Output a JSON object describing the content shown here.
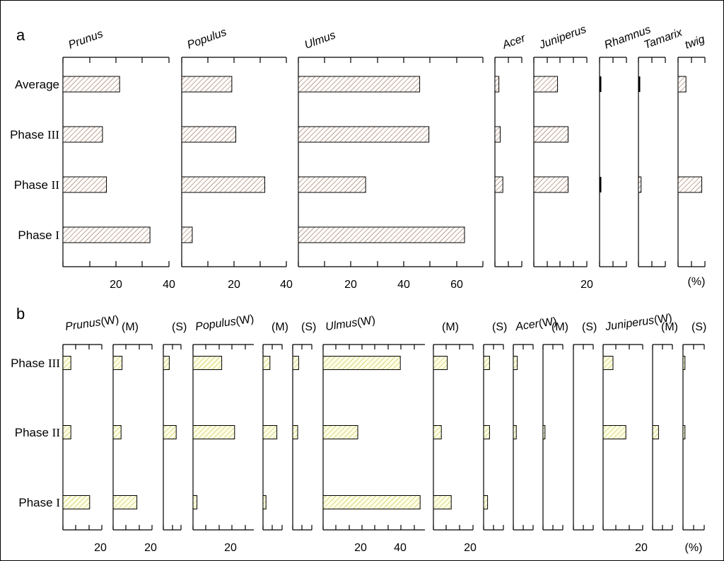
{
  "panels": {
    "a": {
      "label": "a",
      "unit": "(%)",
      "rows": [
        {
          "text": "Average",
          "roman": ""
        },
        {
          "text": "Phase ",
          "roman": "III"
        },
        {
          "text": "Phase ",
          "roman": "II"
        },
        {
          "text": "Phase ",
          "roman": "I"
        }
      ]
    },
    "b": {
      "label": "b",
      "unit": "(%)",
      "rows": [
        {
          "text": "Phase ",
          "roman": "III"
        },
        {
          "text": "Phase ",
          "roman": "II"
        },
        {
          "text": "Phase ",
          "roman": "I"
        }
      ]
    }
  },
  "colors": {
    "a_hatch": "#8b5a3c",
    "b_hatch": "#b5b53a",
    "b_fill": "#ffffe6"
  },
  "chart_data": [
    {
      "type": "bar",
      "orientation": "horizontal",
      "title": "a",
      "xlabel": "(%)",
      "categories": [
        "Average",
        "Phase III",
        "Phase II",
        "Phase I"
      ],
      "series": [
        {
          "name": "Prunus",
          "values": [
            21.5,
            15,
            16.5,
            33
          ],
          "xlim": [
            0,
            40
          ],
          "ticklabels": [
            "20",
            "40"
          ]
        },
        {
          "name": "Populus",
          "values": [
            19,
            20.5,
            31.5,
            4
          ],
          "xlim": [
            0,
            40
          ],
          "ticklabels": [
            "20",
            "40"
          ]
        },
        {
          "name": "Ulmus",
          "values": [
            46,
            49.5,
            25.5,
            63
          ],
          "xlim": [
            0,
            70
          ],
          "ticklabels": [
            "20",
            "40",
            "60"
          ]
        },
        {
          "name": "Acer",
          "values": [
            1.5,
            2,
            3,
            0
          ],
          "xlim": [
            0,
            12
          ],
          "ticklabels": []
        },
        {
          "name": "Juniperus",
          "values": [
            9,
            13,
            13,
            0
          ],
          "xlim": [
            0,
            20
          ],
          "ticklabels": [
            "20"
          ]
        },
        {
          "name": "Rhamnus",
          "values": [
            0.3,
            0,
            0.3,
            0
          ],
          "xlim": [
            0,
            12
          ],
          "ticklabels": []
        },
        {
          "name": "Tamarix",
          "values": [
            0.3,
            0,
            1,
            0
          ],
          "xlim": [
            0,
            12
          ],
          "ticklabels": []
        },
        {
          "name": "twig",
          "values": [
            3,
            0,
            9,
            0
          ],
          "xlim": [
            0,
            12
          ],
          "ticklabels": []
        }
      ]
    },
    {
      "type": "bar",
      "orientation": "horizontal",
      "title": "b",
      "xlabel": "(%)",
      "categories": [
        "Phase III",
        "Phase II",
        "Phase I"
      ],
      "series": [
        {
          "name": "Prunus(W)",
          "values": [
            4,
            4,
            13.5
          ],
          "xlim": [
            0,
            16
          ],
          "ticklabels": [
            "20"
          ]
        },
        {
          "name": "(M)",
          "values": [
            4.5,
            4,
            12
          ],
          "xlim": [
            0,
            16
          ],
          "ticklabels": [
            "20"
          ]
        },
        {
          "name": "(S)",
          "values": [
            3,
            6.5,
            0
          ],
          "xlim": [
            0,
            12
          ],
          "ticklabels": []
        },
        {
          "name": "Populus(W)",
          "values": [
            14.5,
            21,
            2
          ],
          "xlim": [
            0,
            30
          ],
          "ticklabels": [
            "20"
          ]
        },
        {
          "name": "(M)",
          "values": [
            3.5,
            7,
            1.5
          ],
          "xlim": [
            0,
            12
          ],
          "ticklabels": []
        },
        {
          "name": "(S)",
          "values": [
            3,
            2.5,
            0
          ],
          "xlim": [
            0,
            12
          ],
          "ticklabels": []
        },
        {
          "name": "Ulmus(W)",
          "values": [
            39,
            17.5,
            49
          ],
          "xlim": [
            0,
            50
          ],
          "ticklabels": [
            "20",
            "40"
          ]
        },
        {
          "name": "(M)",
          "values": [
            7,
            4,
            9
          ],
          "xlim": [
            0,
            16
          ],
          "ticklabels": [
            "20"
          ]
        },
        {
          "name": "(S)",
          "values": [
            3,
            3,
            2
          ],
          "xlim": [
            0,
            12
          ],
          "ticklabels": []
        },
        {
          "name": "Acer(W)",
          "values": [
            2,
            1.5,
            0
          ],
          "xlim": [
            0,
            12
          ],
          "ticklabels": []
        },
        {
          "name": "(M)",
          "values": [
            0,
            1,
            0
          ],
          "xlim": [
            0,
            12
          ],
          "ticklabels": []
        },
        {
          "name": "(S)",
          "values": [
            0,
            0,
            0
          ],
          "xlim": [
            0,
            12
          ],
          "ticklabels": []
        },
        {
          "name": "Juniperus(W)",
          "values": [
            5,
            11.5,
            0
          ],
          "xlim": [
            0,
            24
          ],
          "ticklabels": [
            "20"
          ]
        },
        {
          "name": "(M)",
          "values": [
            0,
            3,
            0
          ],
          "xlim": [
            0,
            12
          ],
          "ticklabels": []
        },
        {
          "name": "(S)",
          "values": [
            1,
            1,
            0
          ],
          "xlim": [
            0,
            12
          ],
          "ticklabels": []
        }
      ]
    }
  ]
}
